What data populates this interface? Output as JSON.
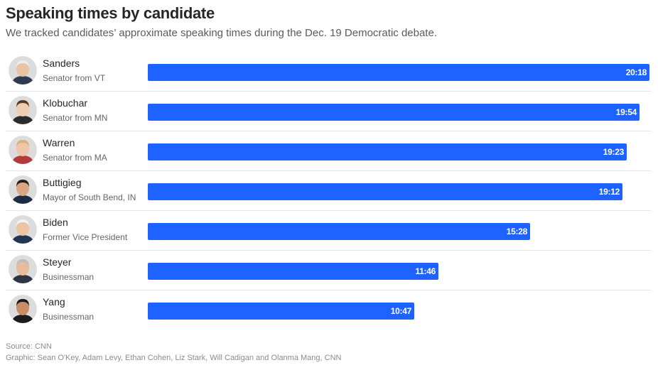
{
  "title": "Speaking times by candidate",
  "subtitle": "We tracked candidates’ approximate speaking times during the Dec. 19 Democratic debate.",
  "source": "Source: CNN",
  "credits": "Graphic: Sean O'Key, Adam Levy, Ethan Cohen, Liz Stark, Will Cadigan and Olanma Mang, CNN",
  "colors": {
    "bar": "#1e62ff",
    "divider": "#e5e5e5"
  },
  "chart_data": {
    "type": "bar",
    "orientation": "horizontal",
    "title": "Speaking times by candidate",
    "subtitle": "We tracked candidates’ approximate speaking times during the Dec. 19 Democratic debate.",
    "categories": [
      "Sanders",
      "Klobuchar",
      "Warren",
      "Buttigieg",
      "Biden",
      "Steyer",
      "Yang"
    ],
    "roles": [
      "Senator from VT",
      "Senator from MN",
      "Senator from MA",
      "Mayor of South Bend, IN",
      "Former Vice President",
      "Businessman",
      "Businessman"
    ],
    "labels": [
      "20:18",
      "19:54",
      "19:23",
      "19:12",
      "15:28",
      "11:46",
      "10:47"
    ],
    "values_seconds": [
      1218,
      1194,
      1163,
      1152,
      928,
      706,
      647
    ],
    "xlim": [
      0,
      1218
    ],
    "grid": false,
    "legend": "none"
  }
}
